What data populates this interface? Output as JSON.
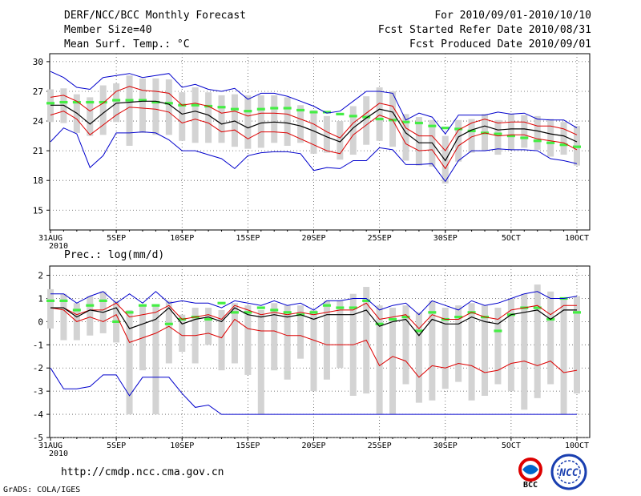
{
  "header": {
    "title": "DERF/NCC/BCC Monthly Forecast",
    "member_size": "Member Size=40",
    "variable": "Mean Surf. Temp.: °C",
    "forecast_range": "For 2010/09/01-2010/10/10",
    "started_refer": "Fcst Started Refer Date 2010/08/31",
    "produced": "Fcst Produced Date 2010/09/01"
  },
  "footer": {
    "url": "http://cmdp.ncc.cma.gov.cn",
    "credit": "GrADS: COLA/IGES",
    "logo_bcc": "BCC",
    "logo_ncc": "NCC"
  },
  "colors": {
    "ensemble_mean": "#000000",
    "spread": "#dd0000",
    "extremes": "#0000cc",
    "box": "#d3d3d3",
    "climatology": "#44ee44",
    "grid": "#555555"
  },
  "chart_data": [
    {
      "type": "line",
      "title": "Mean Surf. Temp.: °C",
      "xlabel_year": "2010",
      "x_ticks": [
        "31AUG",
        "5SEP",
        "10SEP",
        "15SEP",
        "20SEP",
        "25SEP",
        "30SEP",
        "5OCT",
        "10OCT"
      ],
      "y_ticks": [
        15,
        18,
        21,
        24,
        27,
        30
      ],
      "ylim": [
        13,
        30.8
      ],
      "days": 41,
      "series": [
        {
          "name": "ensemble-mean",
          "values": [
            25.6,
            25.6,
            24.8,
            23.7,
            24.8,
            25.8,
            25.9,
            26.0,
            26.0,
            25.7,
            24.7,
            25.0,
            24.6,
            23.7,
            24.0,
            23.3,
            23.8,
            23.9,
            23.8,
            23.5,
            23.0,
            22.4,
            21.9,
            23.3,
            24.3,
            25.2,
            24.9,
            22.8,
            21.8,
            21.8,
            20.0,
            22.4,
            23.1,
            23.5,
            23.1,
            23.2,
            23.2,
            23.0,
            22.7,
            22.5,
            21.9
          ]
        },
        {
          "name": "upper-spread",
          "values": [
            26.4,
            26.6,
            26.0,
            25.0,
            25.8,
            27.0,
            27.5,
            27.1,
            27.0,
            26.8,
            25.6,
            25.8,
            25.5,
            24.8,
            25.0,
            24.5,
            24.8,
            24.8,
            24.7,
            24.2,
            23.7,
            22.9,
            22.3,
            23.8,
            24.8,
            25.8,
            25.5,
            23.3,
            22.5,
            22.5,
            21.0,
            23.1,
            23.8,
            24.2,
            23.8,
            23.9,
            23.9,
            23.5,
            23.5,
            23.2,
            22.6
          ]
        },
        {
          "name": "lower-spread",
          "values": [
            24.6,
            25.0,
            24.2,
            22.6,
            23.6,
            24.6,
            25.4,
            25.3,
            25.2,
            24.9,
            23.8,
            24.2,
            23.8,
            22.9,
            23.1,
            22.2,
            22.9,
            22.9,
            22.8,
            22.2,
            21.6,
            21.0,
            20.7,
            22.6,
            23.6,
            24.6,
            24.1,
            21.7,
            21.0,
            21.1,
            19.2,
            21.5,
            22.4,
            22.8,
            22.5,
            22.6,
            22.6,
            22.2,
            22.0,
            21.8,
            21.1
          ]
        },
        {
          "name": "upper-extreme",
          "values": [
            29.0,
            28.4,
            27.4,
            27.2,
            28.4,
            28.6,
            28.8,
            28.4,
            28.6,
            28.8,
            27.4,
            27.7,
            27.2,
            27.0,
            27.3,
            26.2,
            26.8,
            26.8,
            26.5,
            26.0,
            25.5,
            24.8,
            25.0,
            26.0,
            27.0,
            27.0,
            26.8,
            24.1,
            24.8,
            24.4,
            22.7,
            24.6,
            24.6,
            24.6,
            24.9,
            24.7,
            24.8,
            24.2,
            24.1,
            24.1,
            23.3
          ]
        },
        {
          "name": "lower-extreme",
          "values": [
            21.9,
            23.3,
            22.7,
            19.3,
            20.5,
            22.8,
            22.8,
            22.9,
            22.8,
            22.1,
            21.0,
            21.0,
            20.6,
            20.2,
            19.2,
            20.5,
            20.8,
            20.9,
            20.9,
            20.7,
            19.0,
            19.3,
            19.2,
            20.0,
            20.0,
            21.3,
            21.1,
            19.6,
            19.6,
            19.7,
            17.9,
            20.0,
            21.0,
            21.0,
            21.2,
            21.1,
            21.1,
            21.0,
            20.2,
            20.0,
            19.7
          ]
        },
        {
          "name": "box-top",
          "values": [
            27.2,
            27.3,
            26.7,
            26.4,
            27.6,
            27.8,
            28.6,
            28.3,
            28.3,
            28.2,
            26.9,
            27.4,
            26.9,
            26.6,
            26.7,
            26.6,
            26.6,
            26.6,
            26.4,
            25.6,
            25.1,
            24.5,
            24.0,
            25.5,
            26.5,
            27.4,
            27.0,
            24.7,
            24.4,
            24.1,
            22.5,
            24.1,
            24.2,
            24.7,
            24.1,
            24.7,
            24.6,
            24.5,
            24.2,
            23.9,
            23.5
          ]
        },
        {
          "name": "box-bottom",
          "values": [
            23.9,
            23.8,
            22.8,
            22.5,
            22.6,
            23.9,
            21.5,
            22.8,
            22.6,
            22.6,
            22.0,
            21.8,
            21.8,
            21.8,
            21.4,
            21.2,
            21.3,
            21.8,
            21.5,
            21.8,
            20.7,
            20.8,
            20.1,
            20.6,
            21.6,
            22.0,
            21.4,
            20.0,
            19.5,
            19.4,
            17.7,
            19.9,
            20.8,
            21.0,
            20.6,
            21.1,
            21.3,
            21.1,
            20.4,
            20.6,
            19.5
          ]
        },
        {
          "name": "climatology",
          "values": [
            25.8,
            25.9,
            25.9,
            25.9,
            25.9,
            26.1,
            26.1,
            26.1,
            25.9,
            25.8,
            25.6,
            25.6,
            25.5,
            25.4,
            25.2,
            25.0,
            25.2,
            25.3,
            25.3,
            25.1,
            24.9,
            24.9,
            24.7,
            24.5,
            24.4,
            24.2,
            24.1,
            23.9,
            23.8,
            23.5,
            23.3,
            23.2,
            23.0,
            22.8,
            22.7,
            22.5,
            22.3,
            22.0,
            21.8,
            21.6,
            21.4
          ]
        }
      ]
    },
    {
      "type": "line",
      "title": "Prec.: log(mm/d)",
      "xlabel_year": "2010",
      "x_ticks": [
        "31AUG",
        "5SEP",
        "10SEP",
        "15SEP",
        "20SEP",
        "25SEP",
        "30SEP",
        "5OCT",
        "10OCT"
      ],
      "y_ticks": [
        -5,
        -4,
        -3,
        -2,
        -1,
        0,
        1,
        2
      ],
      "ylim": [
        -5,
        2.4
      ],
      "days": 41,
      "series": [
        {
          "name": "ensemble-mean",
          "values": [
            0.6,
            0.6,
            0.2,
            0.5,
            0.4,
            0.6,
            -0.3,
            -0.1,
            0.1,
            0.6,
            -0.1,
            0.1,
            0.2,
            0.0,
            0.6,
            0.3,
            0.2,
            0.3,
            0.2,
            0.3,
            0.1,
            0.3,
            0.3,
            0.3,
            0.5,
            -0.2,
            0.0,
            0.1,
            -0.6,
            0.1,
            -0.1,
            -0.1,
            0.2,
            0.0,
            -0.1,
            0.3,
            0.4,
            0.5,
            0.1,
            0.5,
            0.5
          ]
        },
        {
          "name": "upper-spread",
          "values": [
            0.6,
            0.6,
            0.3,
            0.5,
            0.5,
            0.8,
            0.2,
            0.3,
            0.4,
            0.7,
            0.1,
            0.2,
            0.3,
            0.1,
            0.7,
            0.5,
            0.3,
            0.4,
            0.3,
            0.4,
            0.3,
            0.4,
            0.5,
            0.5,
            0.8,
            0.1,
            0.2,
            0.3,
            -0.3,
            0.3,
            0.1,
            0.1,
            0.4,
            0.2,
            0.1,
            0.5,
            0.6,
            0.7,
            0.3,
            0.7,
            0.7
          ]
        },
        {
          "name": "lower-spread",
          "values": [
            0.6,
            0.5,
            0.0,
            0.2,
            0.0,
            0.3,
            -0.9,
            -0.7,
            -0.5,
            -0.2,
            -0.6,
            -0.6,
            -0.5,
            -0.7,
            0.1,
            -0.3,
            -0.4,
            -0.4,
            -0.6,
            -0.6,
            -0.8,
            -1.0,
            -1.0,
            -1.0,
            -0.8,
            -1.1,
            -0.8,
            -0.8,
            -1.2,
            -0.8,
            -0.9,
            -0.7,
            -0.5,
            -0.6,
            -0.7,
            -0.5,
            -0.4,
            -0.2,
            -0.5,
            -0.1,
            0.0
          ]
        },
        {
          "name": "lower-line",
          "values": [
            0.6,
            0.5,
            0.0,
            0.2,
            0.0,
            0.3,
            -0.9,
            -0.7,
            -0.5,
            -0.2,
            -0.6,
            -0.6,
            -0.5,
            -0.7,
            0.1,
            -0.3,
            -0.4,
            -0.4,
            -0.6,
            -0.6,
            -0.8,
            -1.0,
            -1.0,
            -1.0,
            -0.8,
            -1.9,
            -1.5,
            -1.7,
            -2.4,
            -1.9,
            -2.0,
            -1.8,
            -1.9,
            -2.2,
            -2.1,
            -1.8,
            -1.7,
            -1.9,
            -1.7,
            -2.2,
            -2.1
          ]
        },
        {
          "name": "upper-extreme",
          "values": [
            1.2,
            1.2,
            0.8,
            1.1,
            1.3,
            0.8,
            1.2,
            0.8,
            1.3,
            0.8,
            0.9,
            0.8,
            0.8,
            0.6,
            0.9,
            0.8,
            0.7,
            0.9,
            0.7,
            0.8,
            0.5,
            0.9,
            0.9,
            1.0,
            1.0,
            0.5,
            0.7,
            0.8,
            0.3,
            0.9,
            0.7,
            0.5,
            0.9,
            0.7,
            0.8,
            1.0,
            1.2,
            1.3,
            1.0,
            1.0,
            1.1
          ]
        },
        {
          "name": "lower-extreme",
          "values": [
            -2.0,
            -2.9,
            -2.9,
            -2.8,
            -2.3,
            -2.3,
            -3.2,
            -2.4,
            -2.4,
            -2.4,
            -3.1,
            -3.7,
            -3.6,
            -4.0,
            -4.0,
            -4.0,
            -4.0,
            -4.0,
            -4.0,
            -4.0,
            -4.0,
            -4.0,
            -4.0,
            -4.0,
            -4.0,
            -4.0,
            -4.0,
            -4.0,
            -4.0,
            -4.0,
            -4.0,
            -4.0,
            -4.0,
            -4.0,
            -4.0,
            -4.0,
            -4.0,
            -4.0,
            -4.0,
            -4.0,
            -4.0
          ]
        },
        {
          "name": "box-top",
          "values": [
            1.4,
            1.2,
            0.8,
            1.1,
            1.3,
            0.9,
            0.5,
            0.7,
            0.7,
            0.9,
            0.3,
            0.6,
            0.6,
            0.5,
            0.8,
            0.7,
            0.5,
            0.8,
            0.7,
            0.7,
            0.5,
            0.9,
            0.9,
            1.2,
            1.5,
            0.7,
            0.6,
            0.7,
            0.4,
            0.9,
            0.6,
            0.7,
            0.8,
            0.7,
            0.6,
            1.0,
            1.2,
            1.6,
            1.3,
            1.0,
            1.1
          ]
        },
        {
          "name": "box-bottom",
          "values": [
            -0.3,
            -0.8,
            -0.8,
            -0.6,
            -0.5,
            -0.9,
            -4.0,
            -2.1,
            -4.0,
            -1.8,
            -1.3,
            -1.8,
            -1.0,
            -2.1,
            -1.8,
            -2.3,
            -4.0,
            -2.1,
            -2.5,
            -1.6,
            -3.0,
            -2.5,
            -2.0,
            -3.2,
            -3.1,
            -4.0,
            -4.0,
            -2.7,
            -3.5,
            -3.4,
            -2.9,
            -2.6,
            -3.4,
            -3.2,
            -2.7,
            -3.0,
            -3.8,
            -3.3,
            -2.7,
            -4.0,
            -3.1
          ]
        },
        {
          "name": "climatology",
          "values": [
            0.9,
            0.9,
            0.5,
            0.7,
            0.9,
            0.0,
            0.4,
            0.7,
            0.7,
            -0.1,
            0.1,
            0.2,
            0.1,
            0.8,
            0.4,
            0.4,
            0.6,
            0.5,
            0.4,
            0.3,
            0.4,
            0.7,
            0.6,
            0.6,
            0.9,
            -0.1,
            0.1,
            0.2,
            -0.4,
            0.4,
            0.1,
            0.2,
            0.4,
            0.2,
            -0.4,
            0.3,
            0.6,
            0.6,
            0.1,
            1.0,
            0.4
          ]
        }
      ]
    }
  ]
}
